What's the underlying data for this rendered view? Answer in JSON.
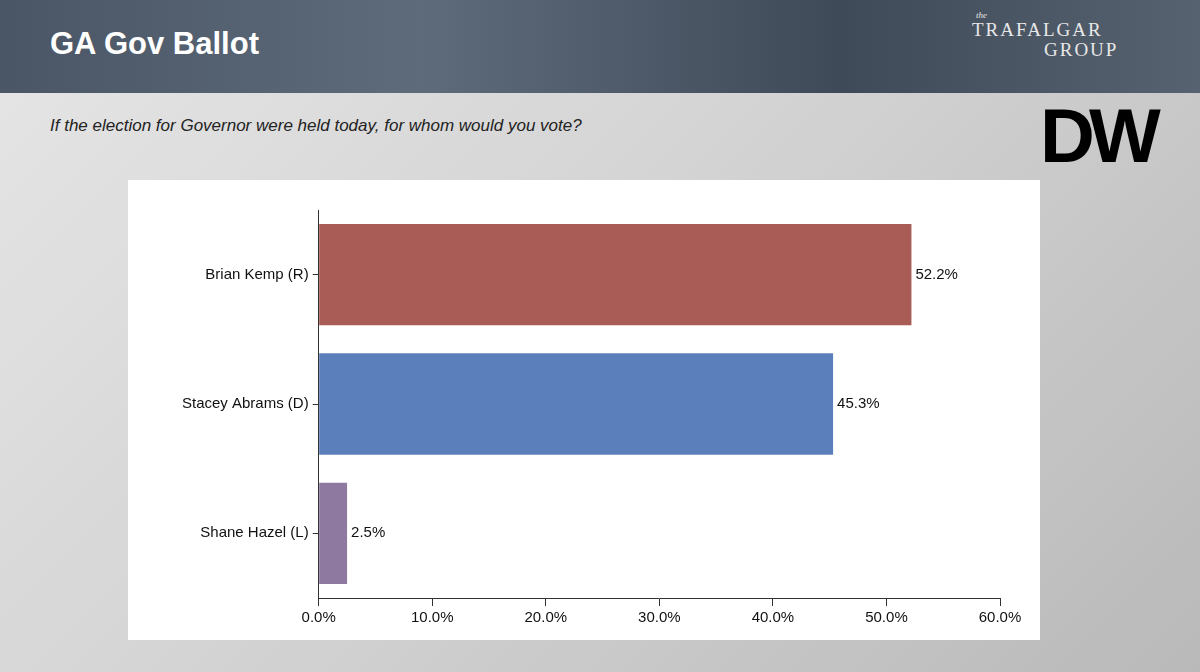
{
  "logo": [
    "the",
    "TRAFALGAR",
    "GROUP"
  ],
  "badge": "DW",
  "chart_data": {
    "type": "bar",
    "orientation": "horizontal",
    "title": "GA Gov Ballot",
    "subtitle": "If the election for Governor were held today, for whom would you vote?",
    "categories": [
      "Brian Kemp (R)",
      "Stacey Abrams (D)",
      "Shane Hazel (L)"
    ],
    "values": [
      52.2,
      45.3,
      2.5
    ],
    "value_labels": [
      "52.2%",
      "45.3%",
      "2.5%"
    ],
    "colors": [
      "#a85c55",
      "#5b7fba",
      "#8e7aa0"
    ],
    "data_labels": true,
    "grid": false,
    "xlim": [
      0,
      60
    ],
    "xticks": [
      {
        "value": 0,
        "label": "0.0%"
      },
      {
        "value": 10,
        "label": "10.0%"
      },
      {
        "value": 20,
        "label": "20.0%"
      },
      {
        "value": 30,
        "label": "30.0%"
      },
      {
        "value": 40,
        "label": "40.0%"
      },
      {
        "value": 50,
        "label": "50.0%"
      },
      {
        "value": 60,
        "label": "60.0%"
      }
    ]
  }
}
